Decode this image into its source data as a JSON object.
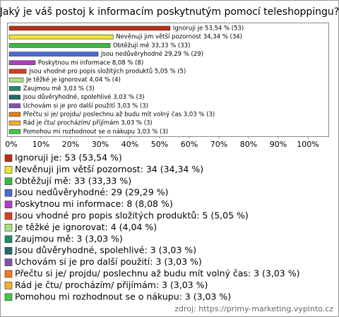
{
  "chart_data": {
    "type": "bar",
    "orientation": "horizontal",
    "title": "Jaký je váš postoj k informacím poskytnutým pomocí teleshoppingu?",
    "values": [
      53.54,
      34.34,
      33.33,
      29.29,
      8.08,
      5.05,
      4.04,
      3.03,
      3.03,
      3.03,
      3.03,
      3.03,
      3.03
    ],
    "value_labels": [
      "Ignoruji je 53,54 % (53)",
      "Nevěnuji jim větší pozornost 34,34 % (34)",
      "Obtěžují mě 33,33 % (33)",
      "Jsou nedůvěryhodné 29,29 % (29)",
      "Poskytnou mi informace 8,08 % (8)",
      "Jsou vhodné pro popis složitých produktů 5,05 % (5)",
      "Je těžké je ignorovat 4,04 % (4)",
      "Zaujmou mě 3,03 % (3)",
      "Jsou důvěryhodné, spolehlivé 3,03 % (3)",
      "Uchovám si je pro další použití 3,03 % (3)",
      "Přečtu si je/ projdu/ poslechnu až budu mít volný čas 3,03 % (3)",
      "Rád je čtu/ procházím/ přijímám 3,03 % (3)",
      "Pomohou mi rozhodnout se o nákupu 3,03 % (3)"
    ],
    "legend_labels": [
      "Ignoruji je: 53 (53,54 %)",
      "Nevěnuji jim větší pozornost: 34 (34,34 %)",
      "Obtěžují mě: 33 (33,33 %)",
      "Jsou nedůvěryhodné: 29 (29,29 %)",
      "Poskytnou mi informace: 8 (8,08 %)",
      "Jsou vhodné pro popis složitých produktů: 5 (5,05 %)",
      "Je těžké je ignorovat: 4 (4,04 %)",
      "Zaujmou mě: 3 (3,03 %)",
      "Jsou důvěryhodné, spolehlivé: 3 (3,03 %)",
      "Uchovám si je pro další použití: 3 (3,03 %)",
      "Přečtu si je/ projdu/ poslechnu až budu mít volný čas: 3 (3,03 %)",
      "Rád je čtu/ procházím/ přijímám: 3 (3,03 %)",
      "Pomohou mi rozhodnout se o nákupu: 3 (3,03 %)"
    ],
    "colors": [
      "#b8301c",
      "#f2e23a",
      "#3db83d",
      "#4a6ad6",
      "#b23ec2",
      "#d8401e",
      "#a6e27e",
      "#1f8a6e",
      "#236a6a",
      "#8552a8",
      "#f07c1c",
      "#f0b02c",
      "#44c844"
    ],
    "xlim": [
      0,
      100
    ],
    "xticks": [
      {
        "value": 0,
        "label": "0%"
      },
      {
        "value": 10,
        "label": "10%"
      },
      {
        "value": 20,
        "label": "20%"
      },
      {
        "value": 30,
        "label": "30%"
      },
      {
        "value": 40,
        "label": "40%"
      },
      {
        "value": 50,
        "label": "50%"
      },
      {
        "value": 60,
        "label": "60%"
      },
      {
        "value": 70,
        "label": "70%"
      },
      {
        "value": 80,
        "label": "80%"
      },
      {
        "value": 90,
        "label": "90%"
      },
      {
        "value": 100,
        "label": "100%"
      }
    ],
    "source": "zdroj: https://primy-marketing.vyplnto.cz"
  }
}
